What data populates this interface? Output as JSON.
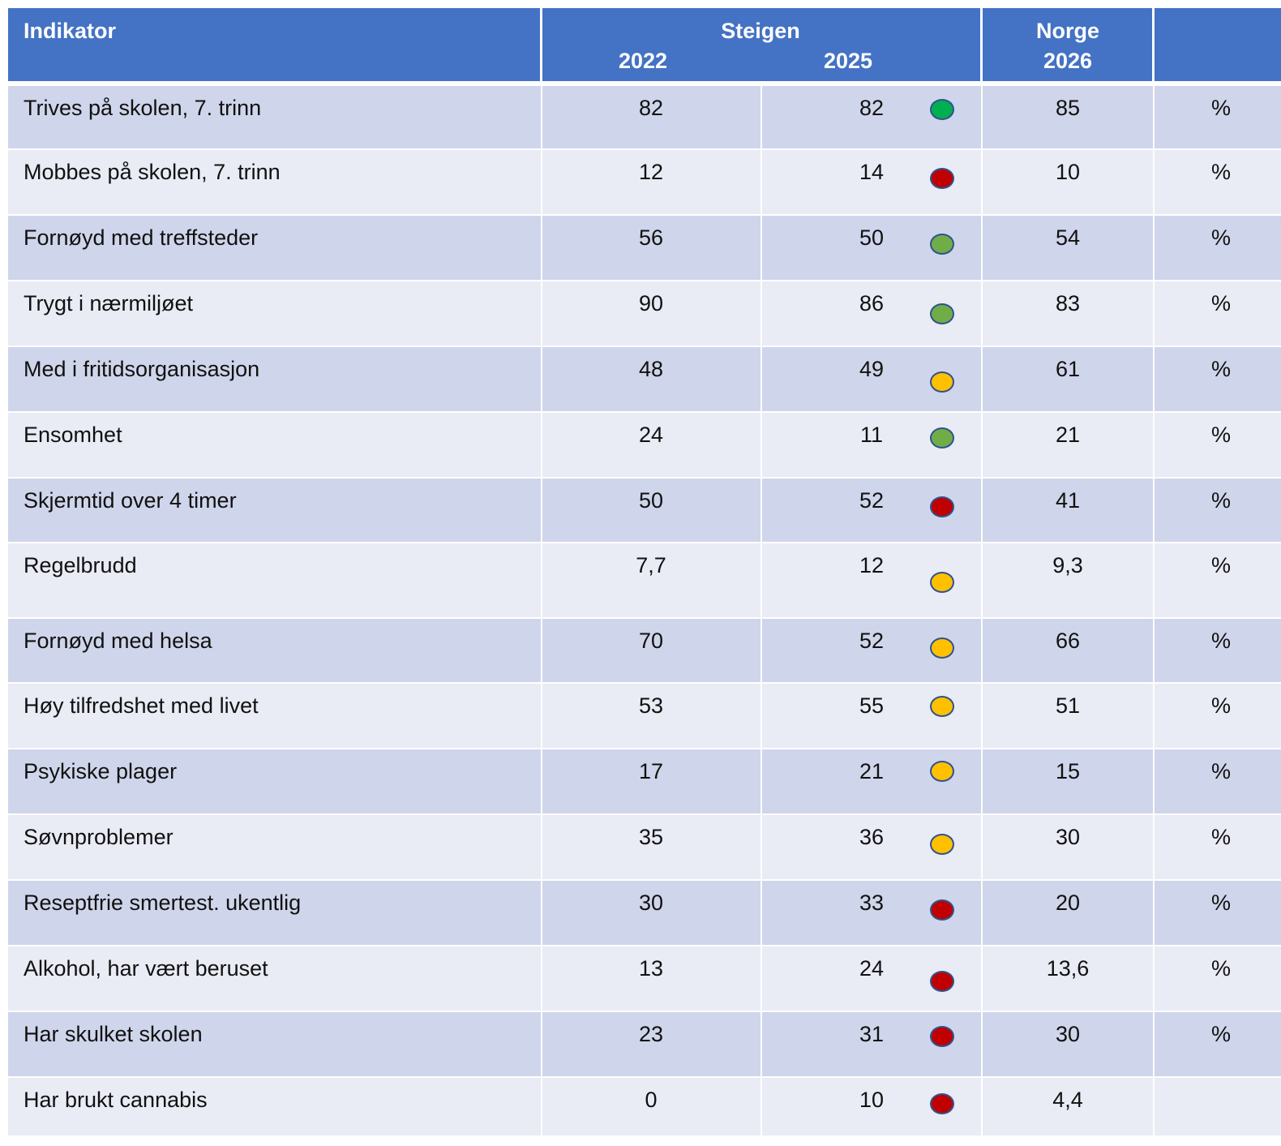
{
  "header": {
    "indicator": "Indikator",
    "region": "Steigen",
    "year1": "2022",
    "year2": "2025",
    "country": "Norge",
    "country_year": "2026"
  },
  "rows": [
    {
      "label": "Trives på skolen, 7. trinn",
      "v2022": 82,
      "v2025": 82,
      "dot": "#00b050",
      "norge": 85,
      "unit": "%"
    },
    {
      "label": "Mobbes på skolen, 7. trinn",
      "v2022": 12,
      "v2025": 14,
      "dot": "#c00000",
      "norge": 10,
      "unit": "%"
    },
    {
      "label": "Fornøyd med treffsteder",
      "v2022": 56,
      "v2025": 50,
      "dot": "#70ad47",
      "norge": 54,
      "unit": "%"
    },
    {
      "label": "Trygt i nærmiljøet",
      "v2022": 90,
      "v2025": 86,
      "dot": "#70ad47",
      "norge": 83,
      "unit": "%"
    },
    {
      "label": "Med i fritidsorganisasjon",
      "v2022": 48,
      "v2025": 49,
      "dot": "#ffc000",
      "norge": 61,
      "unit": "%"
    },
    {
      "label": "Ensomhet",
      "v2022": 24,
      "v2025": 11,
      "dot": "#70ad47",
      "norge": 21,
      "unit": "%"
    },
    {
      "label": "Skjermtid over 4 timer",
      "v2022": 50,
      "v2025": 52,
      "dot": "#c00000",
      "norge": 41,
      "unit": "%"
    },
    {
      "label": "Regelbrudd",
      "v2022": "7,7",
      "v2025": 12,
      "dot": "#ffc000",
      "norge": "9,3",
      "unit": "%"
    },
    {
      "label": "Fornøyd med helsa",
      "v2022": 70,
      "v2025": 52,
      "dot": "#ffc000",
      "norge": 66,
      "unit": "%"
    },
    {
      "label": "Høy tilfredshet med livet",
      "v2022": 53,
      "v2025": 55,
      "dot": "#ffc000",
      "norge": 51,
      "unit": "%"
    },
    {
      "label": "Psykiske plager",
      "v2022": 17,
      "v2025": 21,
      "dot": "#ffc000",
      "norge": 15,
      "unit": "%"
    },
    {
      "label": "Søvnproblemer",
      "v2022": 35,
      "v2025": 36,
      "dot": "#ffc000",
      "norge": 30,
      "unit": "%"
    },
    {
      "label": "Reseptfrie smertest. ukentlig",
      "v2022": 30,
      "v2025": 33,
      "dot": "#c00000",
      "norge": 20,
      "unit": "%"
    },
    {
      "label": "Alkohol, har vært beruset",
      "v2022": 13,
      "v2025": 24,
      "dot": "#c00000",
      "norge": "13,6",
      "unit": "%"
    },
    {
      "label": "Har skulket skolen",
      "v2022": 23,
      "v2025": 31,
      "dot": "#c00000",
      "norge": 30,
      "unit": "%"
    },
    {
      "label": "Har brukt cannabis",
      "v2022": 0,
      "v2025": 10,
      "dot": "#c00000",
      "norge": "4,4"
    }
  ]
}
